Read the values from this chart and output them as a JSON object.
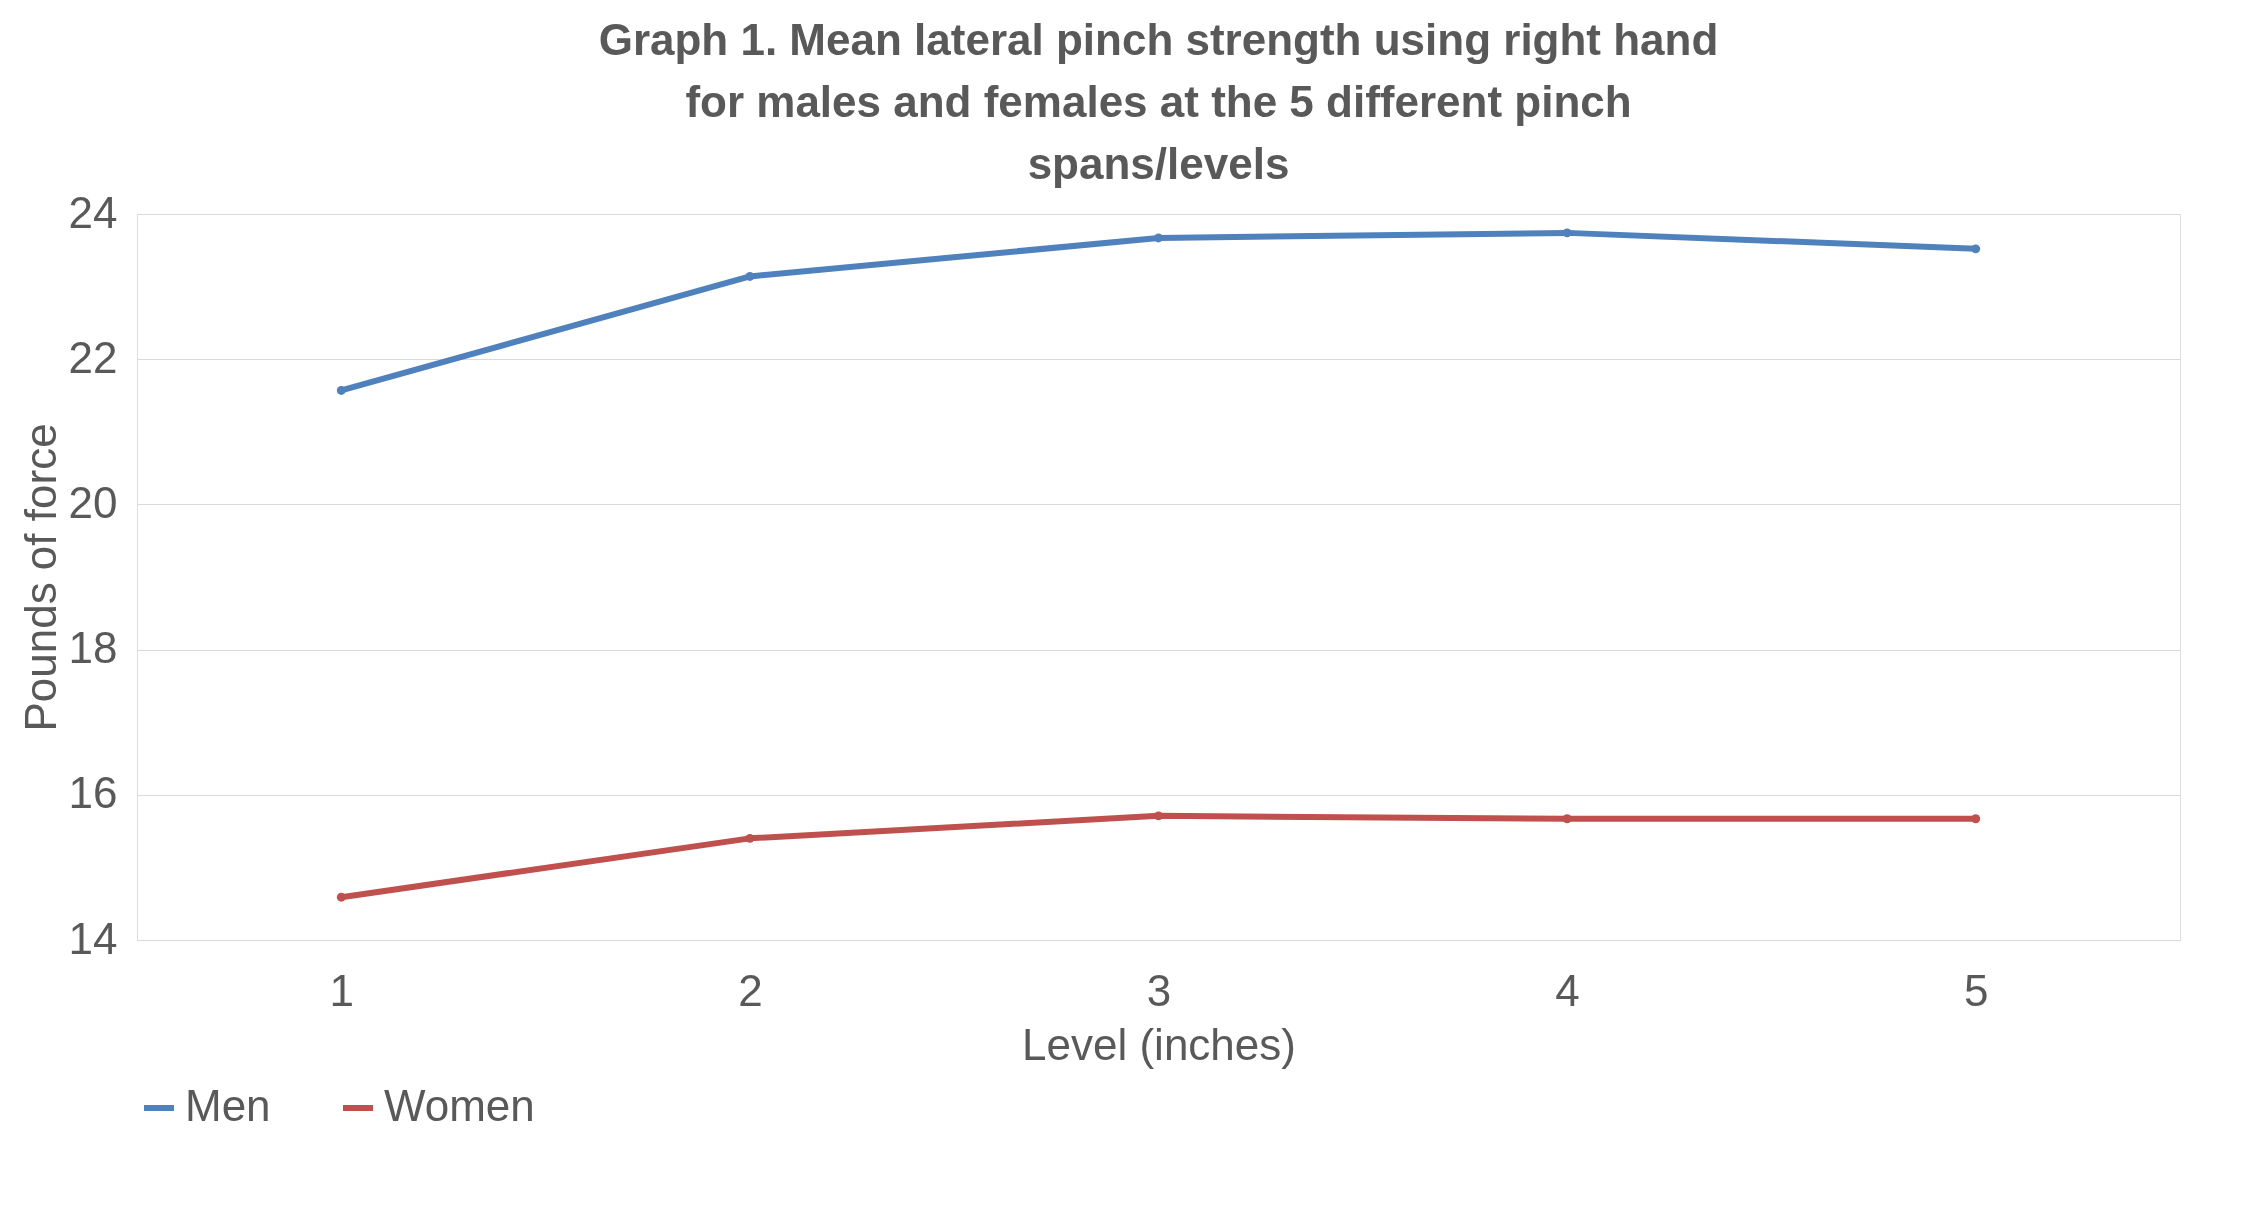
{
  "chart_data": {
    "type": "line",
    "title": "Graph 1. Mean lateral pinch strength using right hand for males and females at the 5 different pinch spans/levels",
    "xlabel": "Level (inches)",
    "ylabel": "Pounds of force",
    "categories": [
      "1",
      "2",
      "3",
      "4",
      "5"
    ],
    "series": [
      {
        "name": "Men",
        "color": "#4f81bd",
        "values": [
          21.57,
          23.14,
          23.67,
          23.74,
          23.52
        ]
      },
      {
        "name": "Women",
        "color": "#c0504d",
        "values": [
          14.59,
          15.4,
          15.71,
          15.67,
          15.67
        ]
      }
    ],
    "ylim": [
      14,
      24
    ],
    "yticks": [
      14,
      16,
      18,
      20,
      22,
      24
    ],
    "grid": "y",
    "legend": "bottom",
    "marker": "circle",
    "line_style": "solid"
  }
}
